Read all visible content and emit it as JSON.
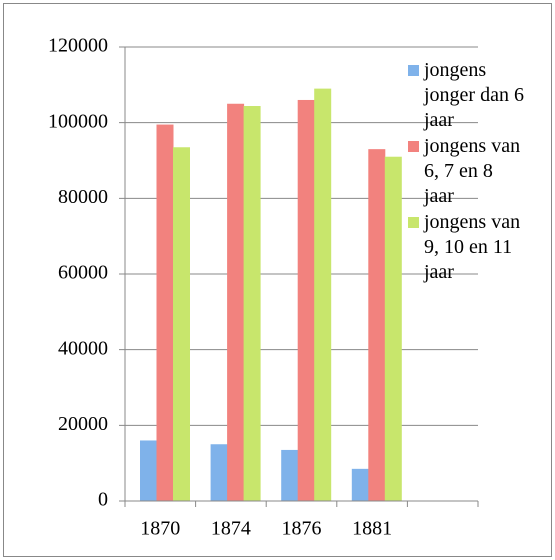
{
  "chart_data": {
    "type": "bar",
    "categories": [
      "1870",
      "1874",
      "1876",
      "1881",
      null
    ],
    "series": [
      {
        "name": "jongens jonger dan 6 jaar",
        "color": "#7fb2ea",
        "values": [
          16000,
          15000,
          13500,
          8500,
          null
        ]
      },
      {
        "name": "jongens van 6, 7 en 8 jaar",
        "color": "#f2827e",
        "values": [
          99500,
          105000,
          106000,
          93000,
          null
        ]
      },
      {
        "name": "jongens van 9, 10 en 11 jaar",
        "color": "#c8e66c",
        "values": [
          93500,
          104400,
          109000,
          91000,
          null
        ]
      }
    ],
    "ylim": [
      0,
      120000
    ],
    "yticks": [
      0,
      20000,
      40000,
      60000,
      80000,
      100000,
      120000
    ],
    "grid": true,
    "legend": "right"
  }
}
